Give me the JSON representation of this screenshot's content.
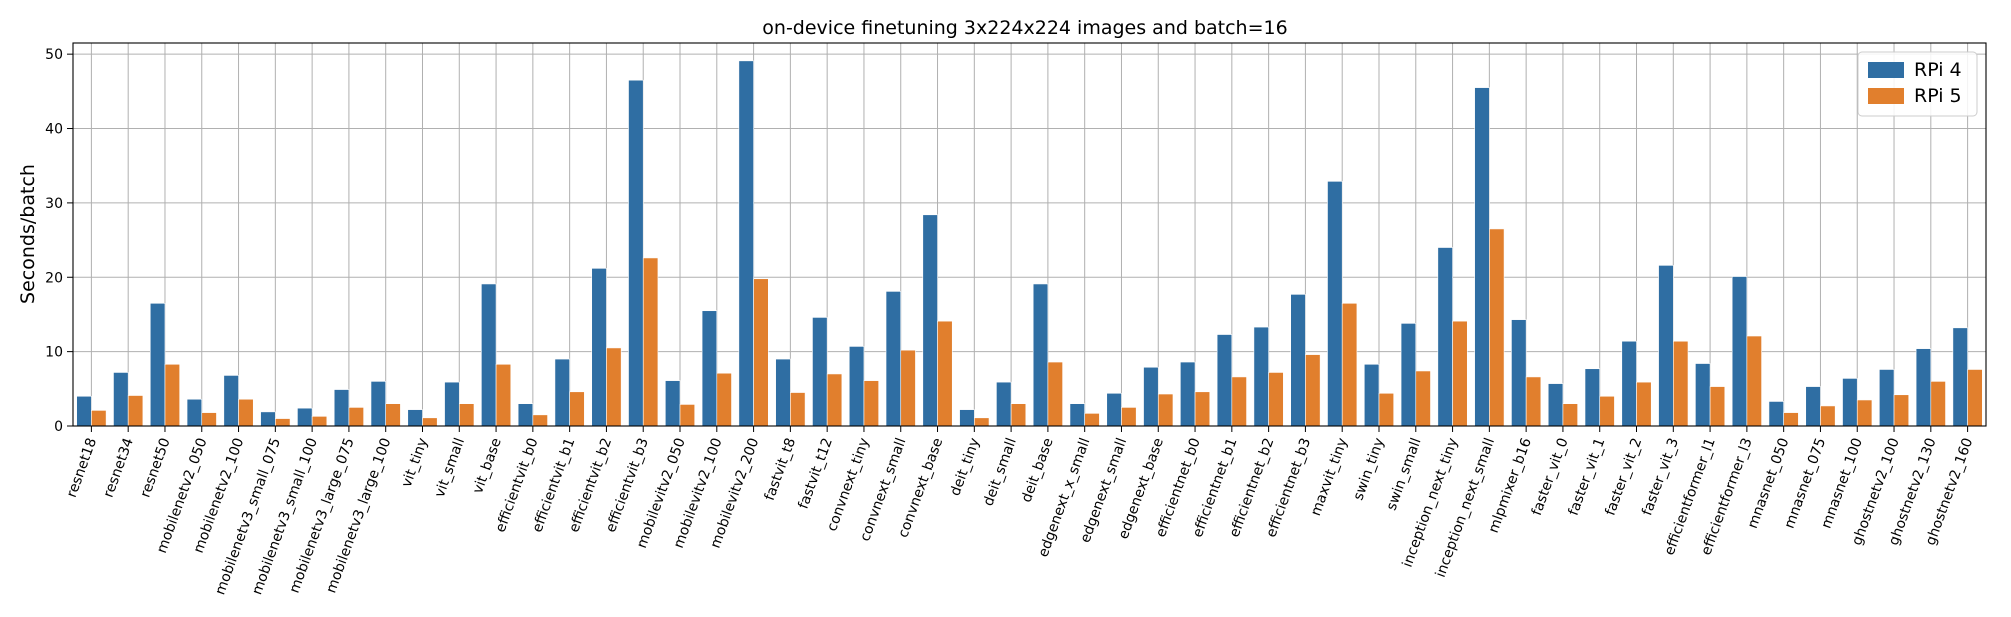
{
  "chart_data": {
    "type": "bar",
    "title": "on-device finetuning 3x224x224 images and batch=16",
    "xlabel": "",
    "ylabel": "Seconds/batch",
    "ylim": [
      0,
      51.5
    ],
    "yticks": [
      0,
      10,
      20,
      30,
      40,
      50
    ],
    "grid": true,
    "legend_position": "top-right",
    "categories": [
      "resnet18",
      "resnet34",
      "resnet50",
      "mobilenetv2_050",
      "mobilenetv2_100",
      "mobilenetv3_small_075",
      "mobilenetv3_small_100",
      "mobilenetv3_large_075",
      "mobilenetv3_large_100",
      "vit_tiny",
      "vit_small",
      "vit_base",
      "efficientvit_b0",
      "efficientvit_b1",
      "efficientvit_b2",
      "efficientvit_b3",
      "mobilevitv2_050",
      "mobilevitv2_100",
      "mobilevitv2_200",
      "fastvit_t8",
      "fastvit_t12",
      "convnext_tiny",
      "convnext_small",
      "convnext_base",
      "deit_tiny",
      "deit_small",
      "deit_base",
      "edgenext_x_small",
      "edgenext_small",
      "edgenext_base",
      "efficientnet_b0",
      "efficientnet_b1",
      "efficientnet_b2",
      "efficientnet_b3",
      "maxvit_tiny",
      "swin_tiny",
      "swin_small",
      "inception_next_tiny",
      "inception_next_small",
      "mlpmixer_b16",
      "faster_vit_0",
      "faster_vit_1",
      "faster_vit_2",
      "faster_vit_3",
      "efficientformer_l1",
      "efficientformer_l3",
      "mnasnet_050",
      "mnasnet_075",
      "mnasnet_100",
      "ghostnetv2_100",
      "ghostnetv2_130",
      "ghostnetv2_160"
    ],
    "series": [
      {
        "name": "RPi 4",
        "color": "#2f6ea3",
        "values": [
          4.0,
          7.2,
          16.5,
          3.6,
          6.8,
          1.9,
          2.4,
          4.9,
          6.0,
          2.2,
          5.9,
          19.1,
          3.0,
          9.0,
          21.2,
          46.5,
          6.1,
          15.5,
          49.1,
          9.0,
          14.6,
          10.7,
          18.1,
          28.4,
          2.2,
          5.9,
          19.1,
          3.0,
          4.4,
          7.9,
          8.6,
          12.3,
          13.3,
          17.7,
          32.9,
          8.3,
          13.8,
          24.0,
          45.5,
          14.3,
          5.7,
          7.7,
          11.4,
          21.6,
          8.4,
          20.1,
          3.3,
          5.3,
          6.4,
          7.6,
          10.4,
          13.2
        ]
      },
      {
        "name": "RPi 5",
        "color": "#e17f2d",
        "values": [
          2.1,
          4.1,
          8.3,
          1.8,
          3.6,
          1.0,
          1.3,
          2.5,
          3.0,
          1.1,
          3.0,
          8.3,
          1.5,
          4.6,
          10.5,
          22.6,
          2.9,
          7.1,
          19.8,
          4.5,
          7.0,
          6.1,
          10.2,
          14.1,
          1.1,
          3.0,
          8.6,
          1.7,
          2.5,
          4.3,
          4.6,
          6.6,
          7.2,
          9.6,
          16.5,
          4.4,
          7.4,
          14.1,
          26.5,
          6.6,
          3.0,
          4.0,
          5.9,
          11.4,
          5.3,
          12.1,
          1.8,
          2.7,
          3.5,
          4.2,
          6.0,
          7.6
        ]
      }
    ]
  }
}
